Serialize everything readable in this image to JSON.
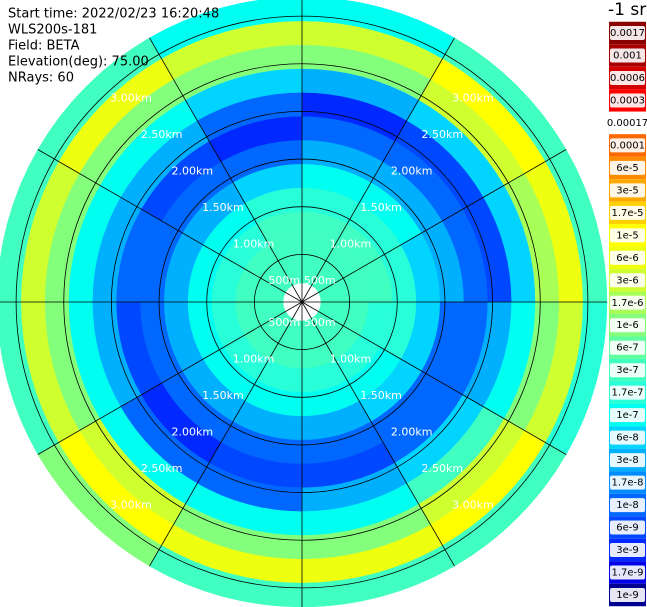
{
  "header": {
    "lines": [
      "Start time: 2022/02/23 16:20:48",
      "WLS200s-181",
      "Field: BETA",
      "Elevation(deg): 75.00",
      "NRays: 60"
    ]
  },
  "chart_data": {
    "type": "polar_heatmap",
    "colorbar_title": "-1 sr",
    "azimuths": [
      0,
      30,
      60,
      90,
      120,
      150,
      180,
      210,
      240,
      270,
      300,
      330
    ],
    "ranges": [
      0.2,
      0.45,
      0.7,
      0.95,
      1.2,
      1.45,
      1.7,
      1.95,
      2.2,
      2.45,
      2.7,
      2.95,
      3.2
    ],
    "values": [
      [
        3e-07,
        3e-07,
        3e-07,
        1.7e-07,
        1e-07,
        3e-08,
        1e-08,
        3e-09,
        3e-08,
        1e-06,
        3e-06,
        1e-07
      ],
      [
        3e-07,
        3e-07,
        3e-07,
        1.7e-07,
        1e-07,
        3e-08,
        1e-08,
        6e-09,
        6e-08,
        3e-06,
        1e-05,
        3e-07
      ],
      [
        3e-07,
        3e-07,
        3e-07,
        1.7e-07,
        6e-08,
        3e-08,
        1e-08,
        6e-09,
        6e-08,
        1.7e-06,
        6e-06,
        3e-07
      ],
      [
        3e-07,
        3e-07,
        1.7e-07,
        1.7e-07,
        6e-08,
        1e-08,
        1e-08,
        3e-08,
        1e-07,
        1e-06,
        3e-06,
        1.7e-07
      ],
      [
        3e-07,
        3e-07,
        1.7e-07,
        1e-07,
        6e-08,
        1e-08,
        1e-08,
        6e-08,
        3e-07,
        3e-06,
        1e-05,
        3e-07
      ],
      [
        3e-07,
        3e-07,
        1.7e-07,
        1e-07,
        3e-08,
        1e-08,
        6e-09,
        3e-08,
        1e-07,
        1e-06,
        6e-06,
        3e-07
      ],
      [
        3e-07,
        3e-07,
        1.7e-07,
        1e-07,
        3e-08,
        1e-08,
        6e-09,
        1e-08,
        1e-07,
        1e-06,
        6e-06,
        3e-07
      ],
      [
        3e-07,
        3e-07,
        1.7e-07,
        1e-07,
        3e-08,
        1e-08,
        3e-09,
        1e-08,
        1e-07,
        3e-06,
        1e-05,
        1e-06
      ],
      [
        3e-07,
        3e-07,
        1.7e-07,
        1e-07,
        3e-08,
        1e-08,
        6e-09,
        3e-08,
        1e-07,
        1e-06,
        3e-06,
        3e-07
      ],
      [
        3e-07,
        3e-07,
        1.7e-07,
        1e-07,
        3e-08,
        1e-08,
        1e-08,
        3e-08,
        1e-07,
        1e-06,
        3e-06,
        3e-07
      ],
      [
        3e-07,
        3e-07,
        1.7e-07,
        1e-07,
        3e-08,
        1e-08,
        6e-09,
        3e-08,
        1e-07,
        1e-06,
        6e-06,
        3e-07
      ],
      [
        3e-07,
        3e-07,
        3e-07,
        1.7e-07,
        6e-08,
        1e-08,
        3e-09,
        1e-08,
        6e-08,
        1e-06,
        3e-06,
        1e-07
      ]
    ],
    "rings": [
      {
        "value": 0.5,
        "label": "500m"
      },
      {
        "value": 1.0,
        "label": "1.00km"
      },
      {
        "value": 1.5,
        "label": "1.50km"
      },
      {
        "value": 2.0,
        "label": "2.00km"
      },
      {
        "value": 2.5,
        "label": "2.50km"
      },
      {
        "value": 3.0,
        "label": "3.00km"
      }
    ],
    "colorbar_ticks": [
      0.0017,
      0.001,
      0.0006,
      0.0003,
      0.00017,
      0.0001,
      {
        "value": 6e-05,
        "label": "6e-5"
      },
      {
        "value": 3e-05,
        "label": "3e-5"
      },
      {
        "value": 1.7e-05,
        "label": "1.7e-5"
      },
      {
        "value": 1e-05,
        "label": "1e-5"
      },
      {
        "value": 6e-06,
        "label": "6e-6"
      },
      {
        "value": 3e-06,
        "label": "3e-6"
      },
      {
        "value": 1.7e-06,
        "label": "1.7e-6"
      },
      {
        "value": 1e-06,
        "label": "1e-6"
      },
      {
        "value": 6e-07,
        "label": "6e-7"
      },
      {
        "value": 3e-07,
        "label": "3e-7"
      },
      {
        "value": 1.7e-07,
        "label": "1.7e-7"
      },
      {
        "value": 1e-07,
        "label": "1e-7"
      },
      {
        "value": 6e-08,
        "label": "6e-8"
      },
      {
        "value": 3e-08,
        "label": "3e-8"
      },
      {
        "value": 1.7e-08,
        "label": "1.7e-8"
      },
      {
        "value": 1e-08,
        "label": "1e-8"
      },
      {
        "value": 6e-09,
        "label": "6e-9"
      },
      {
        "value": 3e-09,
        "label": "3e-9"
      },
      {
        "value": 1.7e-09,
        "label": "1.7e-9"
      },
      {
        "value": 1e-09,
        "label": "1e-9"
      }
    ],
    "colorbar_colors": [
      "#8b0000",
      "#a80000",
      "#d40000",
      "#ff0000",
      "#ffffff",
      "#ff6a00",
      "#ff8c00",
      "#ffa800",
      "#ffd000",
      "#ffff00",
      "#eeff10",
      "#d0ff30",
      "#a8ff58",
      "#84ff7c",
      "#60ffa0",
      "#40ffc0",
      "#28ffd8",
      "#00fff0",
      "#00d4ff",
      "#00b0ff",
      "#008cff",
      "#0068ff",
      "#0048ff",
      "#0028ff",
      "#0000e8",
      "#000090"
    ]
  }
}
